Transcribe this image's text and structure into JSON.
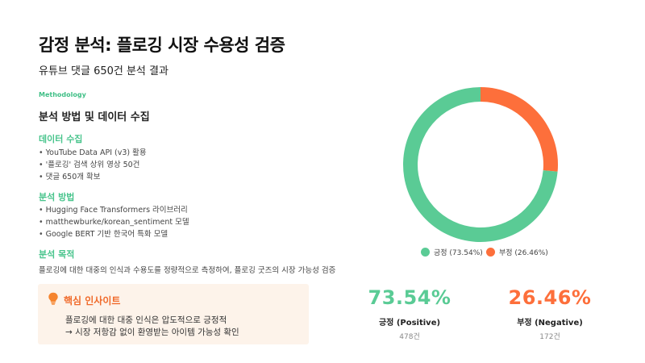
{
  "header": {
    "title": "감정 분석: 플로깅 시장 수용성 검증",
    "subtitle": "유튜브 댓글 650건 분석 결과"
  },
  "methodology": {
    "eyebrow": "Methodology",
    "title": "분석 방법 및 데이터 수집",
    "data_collection": {
      "heading": "데이터 수집",
      "items": [
        "YouTube Data API (v3) 활용",
        "'플로깅' 검색 상위 영상 50건",
        "댓글 650개 확보"
      ]
    },
    "analysis_method": {
      "heading": "분석 방법",
      "items": [
        "Hugging Face Transformers 라이브러리",
        "matthewburke/korean_sentiment 모델",
        "Google BERT 기반 한국어 특화 모델"
      ]
    },
    "purpose": {
      "heading": "분석 목적",
      "text": "플로깅에 대한 대중의 인식과 수용도를 정량적으로 측정하여, 플로깅 굿즈의 시장 가능성 검증"
    }
  },
  "insight": {
    "title": "핵심 인사이트",
    "line1": "플로깅에 대한 대중 인식은 압도적으로 긍정적",
    "line2": "→ 시장 저항감 없이 환영받는 아이템 가능성 확인",
    "icon": "lightbulb-icon"
  },
  "chart_data": {
    "type": "pie",
    "donut": true,
    "series": [
      {
        "name": "긍정",
        "value": 73.54,
        "count": 478
      },
      {
        "name": "부정",
        "value": 26.46,
        "count": 172
      }
    ],
    "colors": {
      "positive": "#5acb95",
      "negative": "#fd6f3b"
    }
  },
  "legend": {
    "positive": "긍정 (73.54%)",
    "negative": "부정 (26.46%)"
  },
  "stats": {
    "positive": {
      "value": "73.54%",
      "label": "긍정 (Positive)",
      "count": "478건"
    },
    "negative": {
      "value": "26.46%",
      "label": "부정 (Negative)",
      "count": "172건"
    }
  }
}
